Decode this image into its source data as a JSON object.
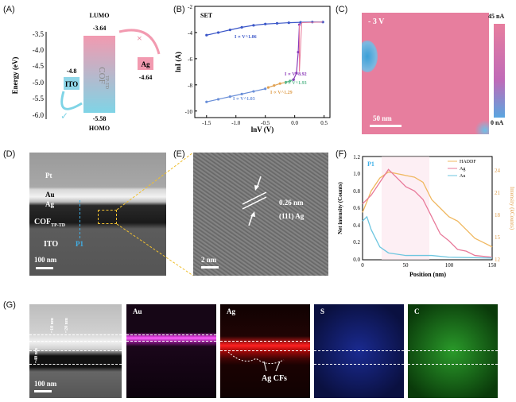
{
  "panels": {
    "a": "(A)",
    "b": "(B)",
    "c": "(C)",
    "d": "(D)",
    "e": "(E)",
    "f": "(F)",
    "g": "(G)"
  },
  "panel_a": {
    "ylabel": "Energy (eV)",
    "yticks": [
      "-3.5",
      "-4.0",
      "-4.5",
      "-5.0",
      "-5.5",
      "-6.0"
    ],
    "lumo_label": "LUMO",
    "homo_label": "HOMO",
    "lumo_value": "-3.64",
    "homo_value": "-5.58",
    "ito_value": "-4.8",
    "ag_value": "-4.64",
    "ito": "ITO",
    "ag": "Ag",
    "cof": "COF",
    "cof_sub": "TP-TD",
    "cross": "×",
    "check": "✓"
  },
  "chart_data": {
    "type": "scatter",
    "title": "SET",
    "xlabel": "lnV (V)",
    "ylabel": "lnI (A)",
    "xlim": [
      -1.7,
      0.6
    ],
    "ylim": [
      -10.5,
      -2
    ],
    "xticks": [
      "-1.5",
      "-1.0",
      "-0.5",
      "0.0",
      "0.5"
    ],
    "yticks": [
      "-2",
      "-4",
      "-6",
      "-8",
      "-10"
    ],
    "series": [
      {
        "name": "I ∝ V^1.06",
        "color": "#3a56c8",
        "points": [
          [
            -1.5,
            -4.2
          ],
          [
            -1.3,
            -4.0
          ],
          [
            -1.1,
            -3.8
          ],
          [
            -0.9,
            -3.6
          ],
          [
            -0.7,
            -3.45
          ],
          [
            -0.5,
            -3.35
          ],
          [
            -0.3,
            -3.3
          ],
          [
            -0.1,
            -3.25
          ],
          [
            0.1,
            -3.22
          ],
          [
            0.3,
            -3.2
          ],
          [
            0.48,
            -3.2
          ]
        ]
      },
      {
        "name": "I ∝ V^1.03",
        "color": "#6a8fd8",
        "points": [
          [
            -1.5,
            -9.3
          ],
          [
            -1.3,
            -9.1
          ],
          [
            -1.1,
            -8.9
          ],
          [
            -0.9,
            -8.7
          ],
          [
            -0.7,
            -8.5
          ],
          [
            -0.5,
            -8.3
          ]
        ]
      },
      {
        "name": "I ∝ V^1.29",
        "color": "#e0a050",
        "points": [
          [
            -0.45,
            -8.2
          ],
          [
            -0.35,
            -8.05
          ],
          [
            -0.25,
            -7.9
          ],
          [
            -0.15,
            -7.8
          ]
        ]
      },
      {
        "name": "I ∝ V^1.93",
        "color": "#5ab88c",
        "points": [
          [
            -0.15,
            -7.8
          ],
          [
            -0.08,
            -7.7
          ],
          [
            -0.02,
            -7.6
          ]
        ]
      },
      {
        "name": "I ∝ V^8.92",
        "color": "#8b3ab8",
        "points": [
          [
            -0.02,
            -7.6
          ],
          [
            0.03,
            -7.1
          ],
          [
            0.06,
            -5.5
          ],
          [
            0.08,
            -3.4
          ]
        ]
      }
    ]
  },
  "panel_c": {
    "label": "- 3 V",
    "scale": "50 nm",
    "cmax": "45 nA",
    "cmin": "0 nA"
  },
  "panel_d": {
    "pt": "Pt",
    "au": "Au",
    "ag": "Ag",
    "cof": "COF",
    "cof_sub": "TP-TD",
    "ito": "ITO",
    "p1": "P1",
    "scale": "100 nm"
  },
  "panel_e": {
    "dspacing": "0.26 nm",
    "plane": "(111) Ag",
    "scale": "2 nm"
  },
  "panel_f": {
    "xlabel": "Position (nm)",
    "ylabel_left": "Net intensity (Counts)",
    "ylabel_right": "Intensity (kCounts)",
    "p1": "P1",
    "xticks": [
      "0",
      "50",
      "100",
      "150"
    ],
    "yticks_left": [
      "0.0",
      "0.2",
      "0.4",
      "0.6",
      "0.8",
      "1.0",
      "1.2"
    ],
    "yticks_right": [
      "12",
      "15",
      "18",
      "21",
      "24"
    ],
    "legend": [
      "HADDF",
      "Ag",
      "Au"
    ],
    "colors": {
      "haddf": "#f0b860",
      "ag": "#e87a9a",
      "au": "#6ec6e0"
    }
  },
  "panel_g": {
    "au": "Au",
    "ag": "Ag",
    "s": "S",
    "c": "C",
    "ag_cfs": "Ag CFs",
    "scale": "100 nm",
    "t1": "~10 nm",
    "t2": "~20 nm",
    "t3": "~40 nm"
  }
}
